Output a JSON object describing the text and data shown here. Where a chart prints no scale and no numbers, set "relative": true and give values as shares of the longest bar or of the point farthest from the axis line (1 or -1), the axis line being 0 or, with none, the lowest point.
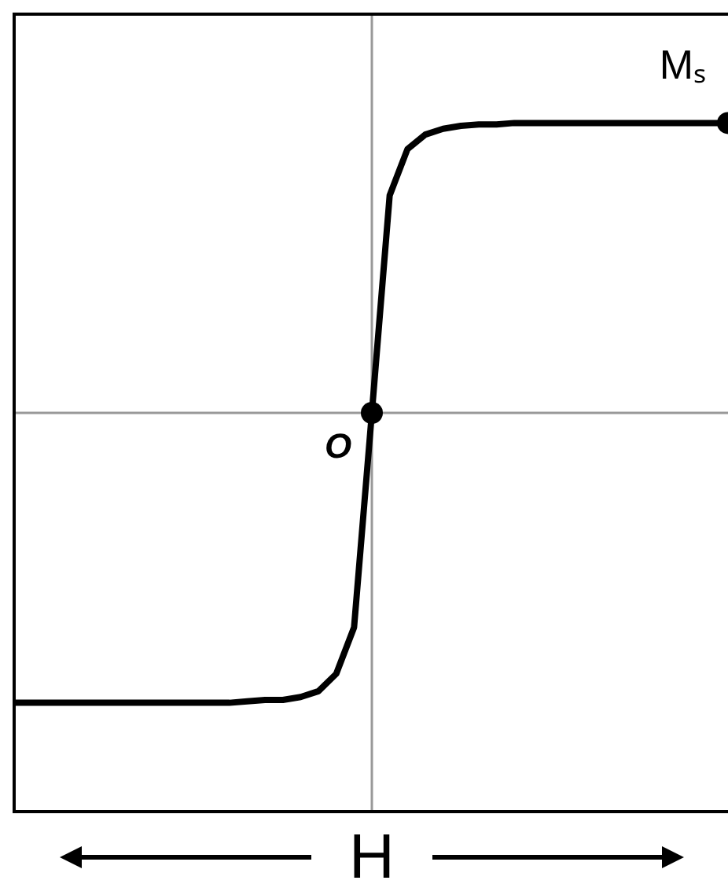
{
  "chart_data": {
    "type": "line",
    "xlabel": "H",
    "relative": true,
    "marker": "none",
    "line_style": "solid",
    "categories": [
      null,
      null,
      null,
      null,
      null,
      null,
      null,
      null,
      null,
      null,
      null,
      null,
      null,
      null,
      null,
      null,
      null,
      null,
      null,
      null,
      null,
      null,
      null,
      null,
      null,
      null,
      null,
      null,
      null,
      null,
      null,
      null,
      null,
      null,
      null,
      null,
      null,
      null,
      null,
      null,
      null
    ],
    "series": [
      {
        "color": "#000000",
        "values": [
          -1,
          -1,
          -1,
          -1,
          -1,
          -1,
          -1,
          -1,
          -1,
          -1,
          -1,
          -1,
          -1,
          -0.995,
          -0.99,
          -0.99,
          -0.98,
          -0.96,
          -0.9,
          -0.74,
          0,
          0.75,
          0.91,
          0.96,
          0.98,
          0.99,
          0.995,
          0.995,
          1,
          1,
          1,
          1,
          1,
          1,
          1,
          1,
          1,
          1,
          1,
          1,
          1
        ]
      }
    ],
    "annotations": [
      "O",
      {
        "text": "Mₛ",
        "y": 1
      }
    ]
  }
}
